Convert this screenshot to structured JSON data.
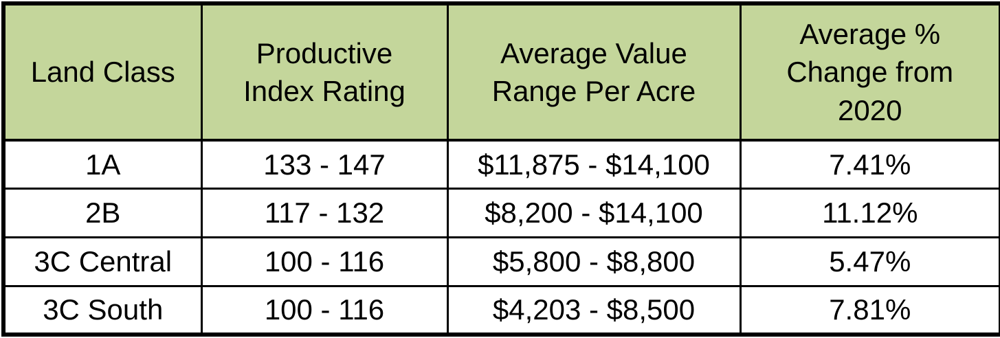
{
  "chart_data": {
    "type": "table",
    "columns": [
      {
        "key": "land-class",
        "label": "Land Class"
      },
      {
        "key": "productive-index-rating",
        "label": "Productive\nIndex Rating"
      },
      {
        "key": "average-value-range-per-acre",
        "label": "Average Value\nRange Per Acre"
      },
      {
        "key": "average-pct-change-from-2020",
        "label": "Average %\nChange from\n2020"
      }
    ],
    "rows": [
      [
        "1A",
        "133 - 147",
        "$11,875 - $14,100",
        "7.41%"
      ],
      [
        "2B",
        "117 - 132",
        "$8,200 - $14,100",
        "11.12%"
      ],
      [
        "3C Central",
        "100 - 116",
        "$5,800 - $8,800",
        "5.47%"
      ],
      [
        "3C South",
        "100 - 116",
        "$4,203 - $8,500",
        "7.81%"
      ]
    ]
  },
  "style": {
    "header_bg": "#c4d69b",
    "border_color": "#000000",
    "row_bg": "#ffffff",
    "text_color": "#000000"
  }
}
